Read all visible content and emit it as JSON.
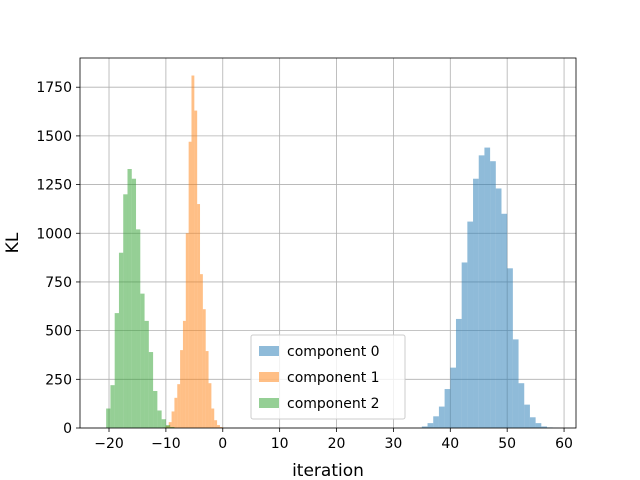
{
  "chart_data": {
    "type": "bar",
    "title": "",
    "xlabel": "iteration",
    "ylabel": "KL",
    "xlim": [
      -25.1,
      62.1
    ],
    "ylim": [
      0,
      1900
    ],
    "xticks": [
      -20,
      -10,
      0,
      10,
      20,
      30,
      40,
      50,
      60
    ],
    "xtick_labels": [
      "−20",
      "−10",
      "0",
      "10",
      "20",
      "30",
      "40",
      "50",
      "60"
    ],
    "yticks": [
      0,
      250,
      500,
      750,
      1000,
      1250,
      1500,
      1750
    ],
    "ytick_labels": [
      "0",
      "250",
      "500",
      "750",
      "1000",
      "1250",
      "1500",
      "1750"
    ],
    "grid": true,
    "legend_position": "lower-center",
    "series": [
      {
        "name": "component 0",
        "color": "#1f77b4",
        "alpha": 0.5,
        "bin_start": 35.0,
        "bin_width": 1.0,
        "counts": [
          8,
          25,
          60,
          110,
          200,
          310,
          560,
          850,
          1060,
          1280,
          1400,
          1440,
          1370,
          1230,
          1100,
          820,
          455,
          230,
          120,
          55,
          25,
          8,
          3,
          1
        ]
      },
      {
        "name": "component 1",
        "color": "#ff7f0e",
        "alpha": 0.5,
        "bin_start": -10.5,
        "bin_width": 0.5,
        "counts": [
          3,
          10,
          30,
          85,
          155,
          225,
          400,
          550,
          1000,
          1470,
          1810,
          1630,
          1150,
          790,
          610,
          395,
          230,
          100,
          40,
          15,
          5
        ]
      },
      {
        "name": "component 2",
        "color": "#2ca02c",
        "alpha": 0.5,
        "bin_start": -20.5,
        "bin_width": 0.75,
        "counts": [
          100,
          220,
          590,
          900,
          1200,
          1330,
          1280,
          1020,
          690,
          550,
          390,
          190,
          90,
          45,
          15,
          5
        ]
      }
    ]
  }
}
